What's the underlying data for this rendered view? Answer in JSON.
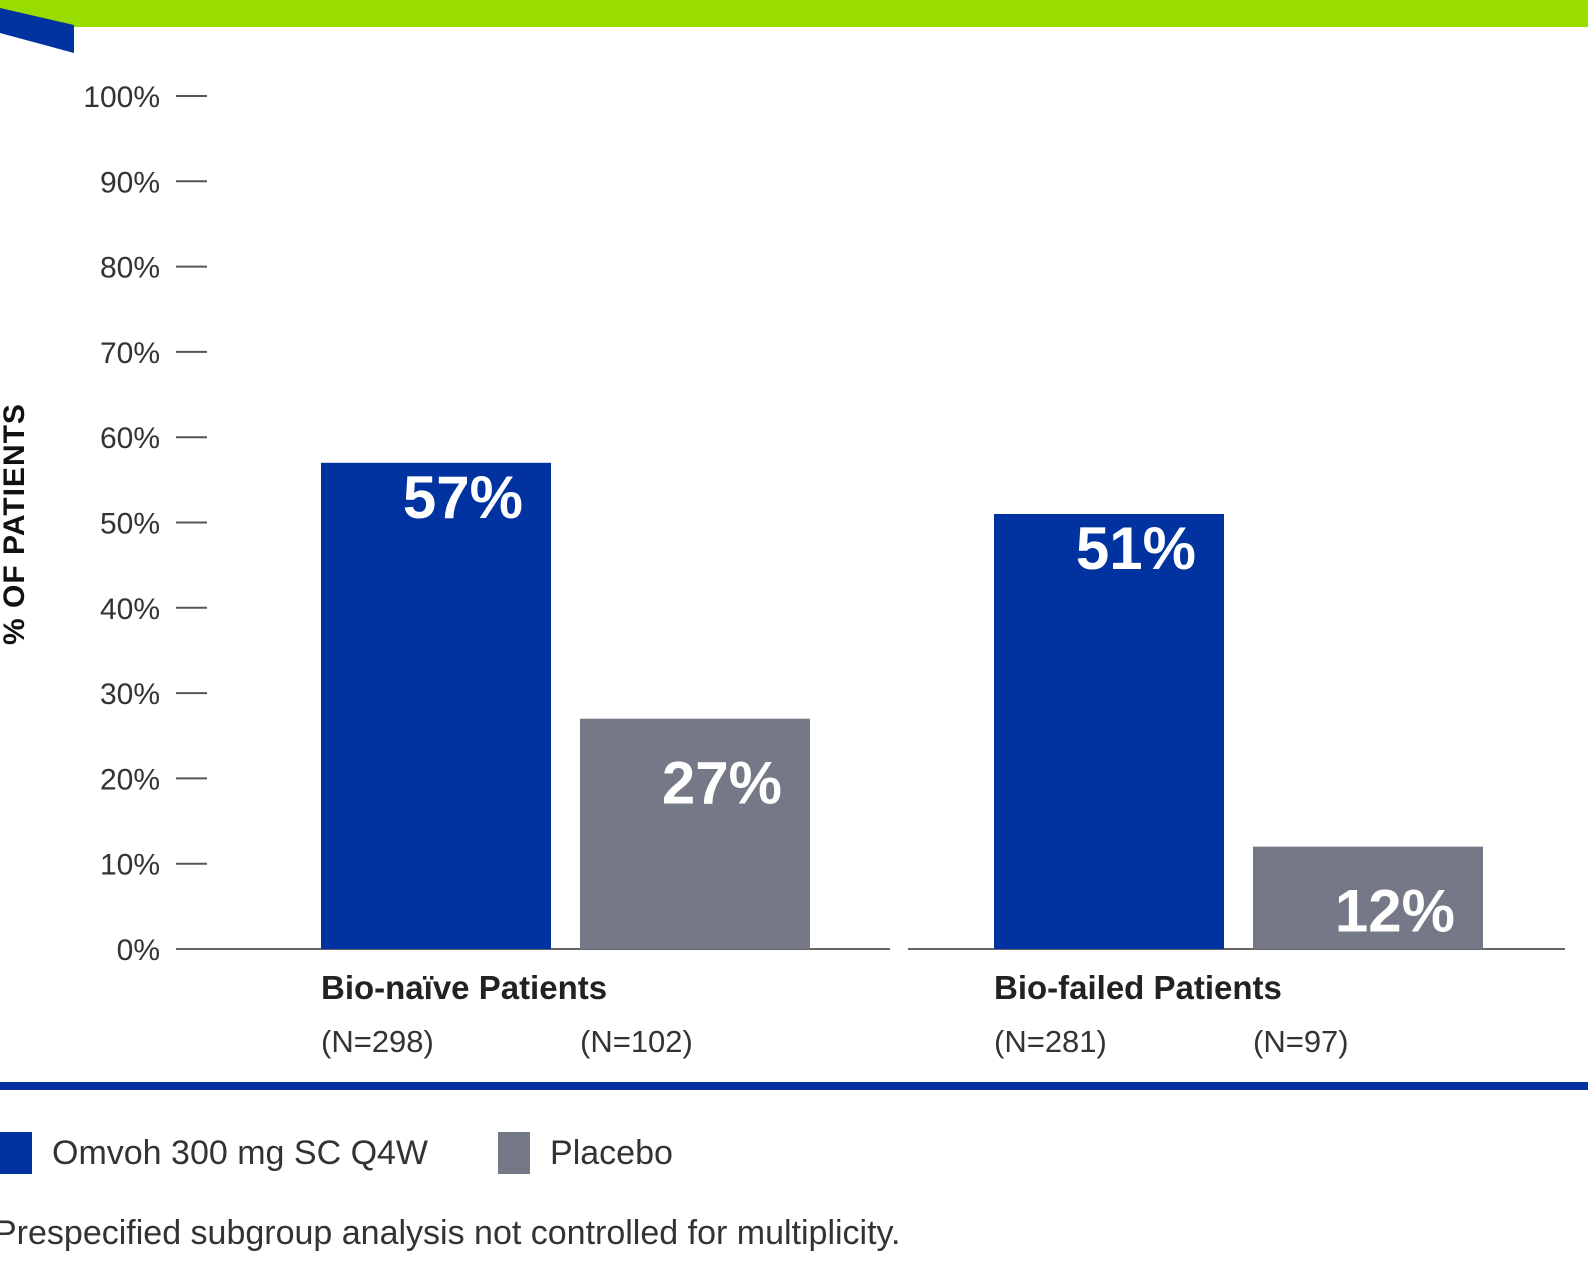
{
  "colors": {
    "accent_green": "#99dd00",
    "omvoh_blue": "#0033a0",
    "placebo_gray": "#757886",
    "divider_blue": "#0033a0"
  },
  "chart_data": {
    "type": "bar",
    "ylabel": "% OF PATIENTS",
    "ylim": [
      0,
      100
    ],
    "yticks": [
      "0%",
      "10%",
      "20%",
      "30%",
      "40%",
      "50%",
      "60%",
      "70%",
      "80%",
      "90%",
      "100%"
    ],
    "categories": [
      "Bio-naïve Patients",
      "Bio-failed Patients"
    ],
    "series": [
      {
        "name": "Omvoh 300 mg SC Q4W",
        "color": "#0033a0",
        "values": [
          57,
          51
        ],
        "labels": [
          "57%",
          "51%"
        ],
        "n": [
          "(N=298)",
          "(N=281)"
        ]
      },
      {
        "name": "Placebo",
        "color": "#757886",
        "values": [
          27,
          12
        ],
        "labels": [
          "27%",
          "12%"
        ],
        "n": [
          "(N=102)",
          "(N=97)"
        ]
      }
    ],
    "grid": false,
    "legend_position": "bottom"
  },
  "legend": {
    "items": [
      {
        "label": "Omvoh 300 mg SC Q4W",
        "color": "#0033a0"
      },
      {
        "label": "Placebo",
        "color": "#757886"
      }
    ]
  },
  "footnote": "Prespecified subgroup analysis not controlled for multiplicity."
}
